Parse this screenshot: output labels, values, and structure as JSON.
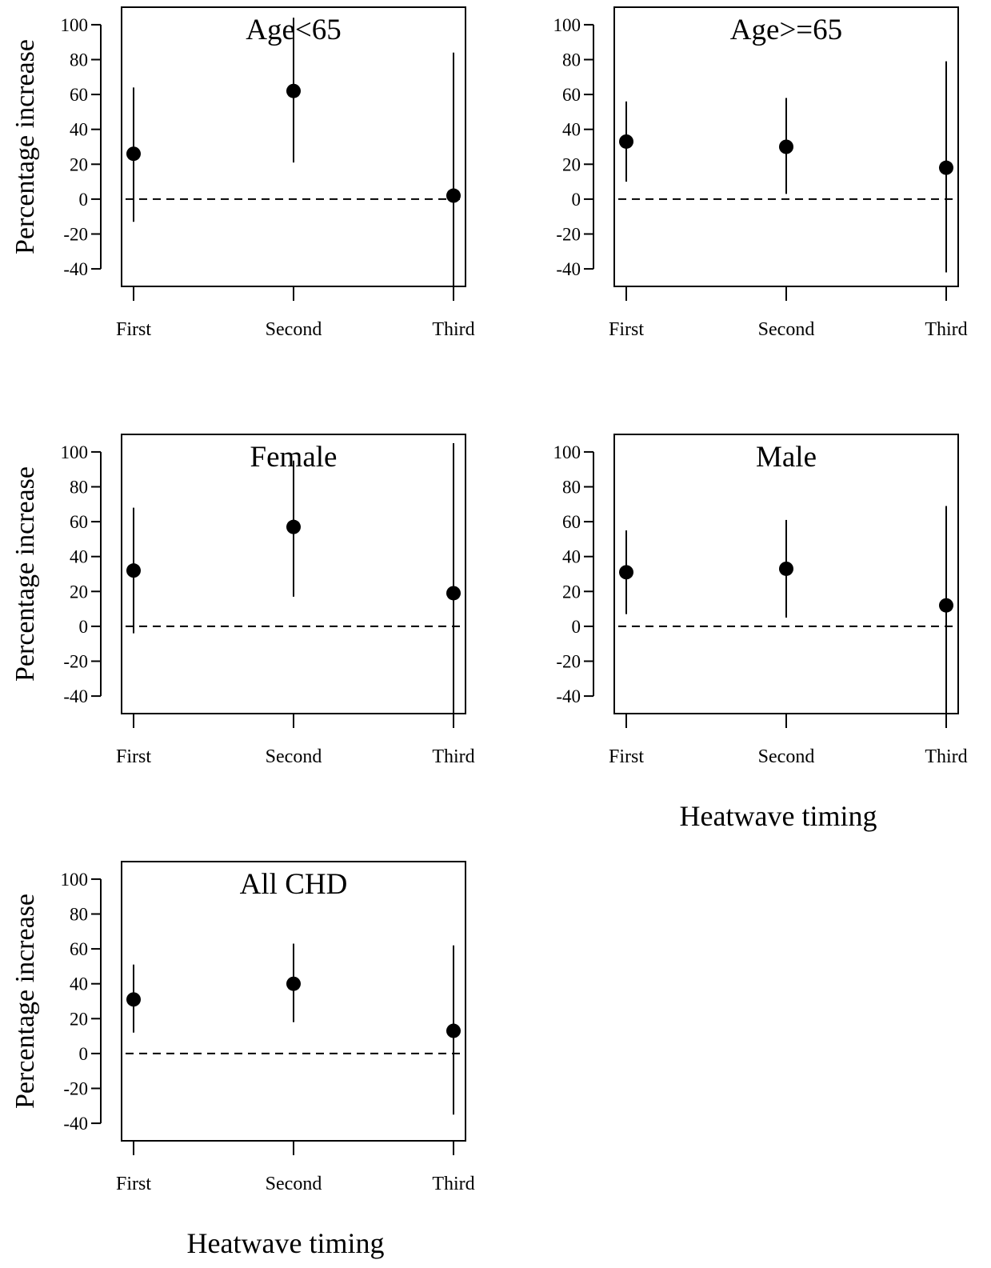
{
  "figure": {
    "ylabel": "Percentage increase",
    "xlabel": "Heatwave timing"
  },
  "chart_data": [
    {
      "type": "scatter",
      "title": "Age<65",
      "categories": [
        "First",
        "Second",
        "Third"
      ],
      "estimates": [
        26,
        62,
        2
      ],
      "ci_lower": [
        -13,
        21,
        -50
      ],
      "ci_upper": [
        64,
        104,
        84
      ],
      "ylabel": "Percentage increase",
      "xlabel": "",
      "yticks": [
        -40,
        -20,
        0,
        20,
        40,
        60,
        80,
        100
      ],
      "ylim": [
        -45,
        105
      ],
      "reference_line": 0
    },
    {
      "type": "scatter",
      "title": "Age>=65",
      "categories": [
        "First",
        "Second",
        "Third"
      ],
      "estimates": [
        33,
        30,
        18
      ],
      "ci_lower": [
        10,
        3,
        -42
      ],
      "ci_upper": [
        56,
        58,
        79
      ],
      "ylabel": "",
      "xlabel": "",
      "yticks": [
        -40,
        -20,
        0,
        20,
        40,
        60,
        80,
        100
      ],
      "ylim": [
        -45,
        105
      ],
      "reference_line": 0
    },
    {
      "type": "scatter",
      "title": "Female",
      "categories": [
        "First",
        "Second",
        "Third"
      ],
      "estimates": [
        32,
        57,
        19
      ],
      "ci_lower": [
        -4,
        17,
        -50
      ],
      "ci_upper": [
        68,
        95,
        105
      ],
      "ylabel": "Percentage increase",
      "xlabel": "",
      "yticks": [
        -40,
        -20,
        0,
        20,
        40,
        60,
        80,
        100
      ],
      "ylim": [
        -45,
        105
      ],
      "reference_line": 0
    },
    {
      "type": "scatter",
      "title": "Male",
      "categories": [
        "First",
        "Second",
        "Third"
      ],
      "estimates": [
        31,
        33,
        12
      ],
      "ci_lower": [
        7,
        5,
        -50
      ],
      "ci_upper": [
        55,
        61,
        69
      ],
      "ylabel": "",
      "xlabel": "Heatwave timing",
      "yticks": [
        -40,
        -20,
        0,
        20,
        40,
        60,
        80,
        100
      ],
      "ylim": [
        -45,
        105
      ],
      "reference_line": 0
    },
    {
      "type": "scatter",
      "title": "All CHD",
      "categories": [
        "First",
        "Second",
        "Third"
      ],
      "estimates": [
        31,
        40,
        13
      ],
      "ci_lower": [
        12,
        18,
        -35
      ],
      "ci_upper": [
        51,
        63,
        62
      ],
      "ylabel": "Percentage increase",
      "xlabel": "Heatwave timing",
      "yticks": [
        -40,
        -20,
        0,
        20,
        40,
        60,
        80,
        100
      ],
      "ylim": [
        -45,
        105
      ],
      "reference_line": 0
    }
  ],
  "colors": {
    "points": "#000000",
    "axes": "#000000",
    "background": "#ffffff"
  }
}
